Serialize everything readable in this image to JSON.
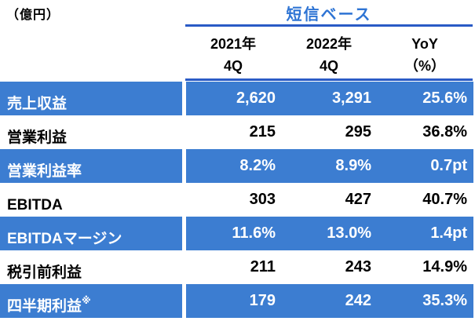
{
  "unit_label": "（億円）",
  "header": {
    "basis_title": "短信ベース",
    "columns": [
      {
        "label": "2021年\n4Q"
      },
      {
        "label": "2022年\n4Q"
      },
      {
        "label": "YoY\n（%）"
      }
    ]
  },
  "table": {
    "rows": [
      {
        "label": "売上収益",
        "suffix": "",
        "highlight": true,
        "values": [
          "2,620",
          "3,291",
          "25.6%"
        ]
      },
      {
        "label": "営業利益",
        "suffix": "",
        "highlight": false,
        "values": [
          "215",
          "295",
          "36.8%"
        ]
      },
      {
        "label": "営業利益率",
        "suffix": "",
        "highlight": true,
        "values": [
          "8.2%",
          "8.9%",
          "0.7pt"
        ]
      },
      {
        "label": "EBITDA",
        "suffix": "",
        "highlight": false,
        "values": [
          "303",
          "427",
          "40.7%"
        ]
      },
      {
        "label": "EBITDAマージン",
        "suffix": "",
        "highlight": true,
        "values": [
          "11.6%",
          "13.0%",
          "1.4pt"
        ]
      },
      {
        "label": "税引前利益",
        "suffix": "",
        "highlight": false,
        "values": [
          "211",
          "243",
          "14.9%"
        ]
      },
      {
        "label": "四半期利益",
        "suffix": "※",
        "highlight": true,
        "values": [
          "179",
          "242",
          "35.3%"
        ]
      }
    ]
  },
  "colors": {
    "row_blue": "#3c7dd1",
    "title_blue": "#2e74d4",
    "rule_blue": "#2a5bc6"
  },
  "chart_data": {
    "type": "table",
    "title": "短信ベース",
    "unit": "億円",
    "columns": [
      "2021年 4Q",
      "2022年 4Q",
      "YoY（%）"
    ],
    "rows": [
      {
        "label": "売上収益",
        "values": [
          "2,620",
          "3,291",
          "25.6%"
        ]
      },
      {
        "label": "営業利益",
        "values": [
          "215",
          "295",
          "36.8%"
        ]
      },
      {
        "label": "営業利益率",
        "values": [
          "8.2%",
          "8.9%",
          "0.7pt"
        ]
      },
      {
        "label": "EBITDA",
        "values": [
          "303",
          "427",
          "40.7%"
        ]
      },
      {
        "label": "EBITDAマージン",
        "values": [
          "11.6%",
          "13.0%",
          "1.4pt"
        ]
      },
      {
        "label": "税引前利益",
        "values": [
          "211",
          "243",
          "14.9%"
        ]
      },
      {
        "label": "四半期利益※",
        "values": [
          "179",
          "242",
          "35.3%"
        ]
      }
    ],
    "highlighted_rows": [
      "売上収益",
      "営業利益率",
      "EBITDAマージン",
      "四半期利益※"
    ]
  }
}
